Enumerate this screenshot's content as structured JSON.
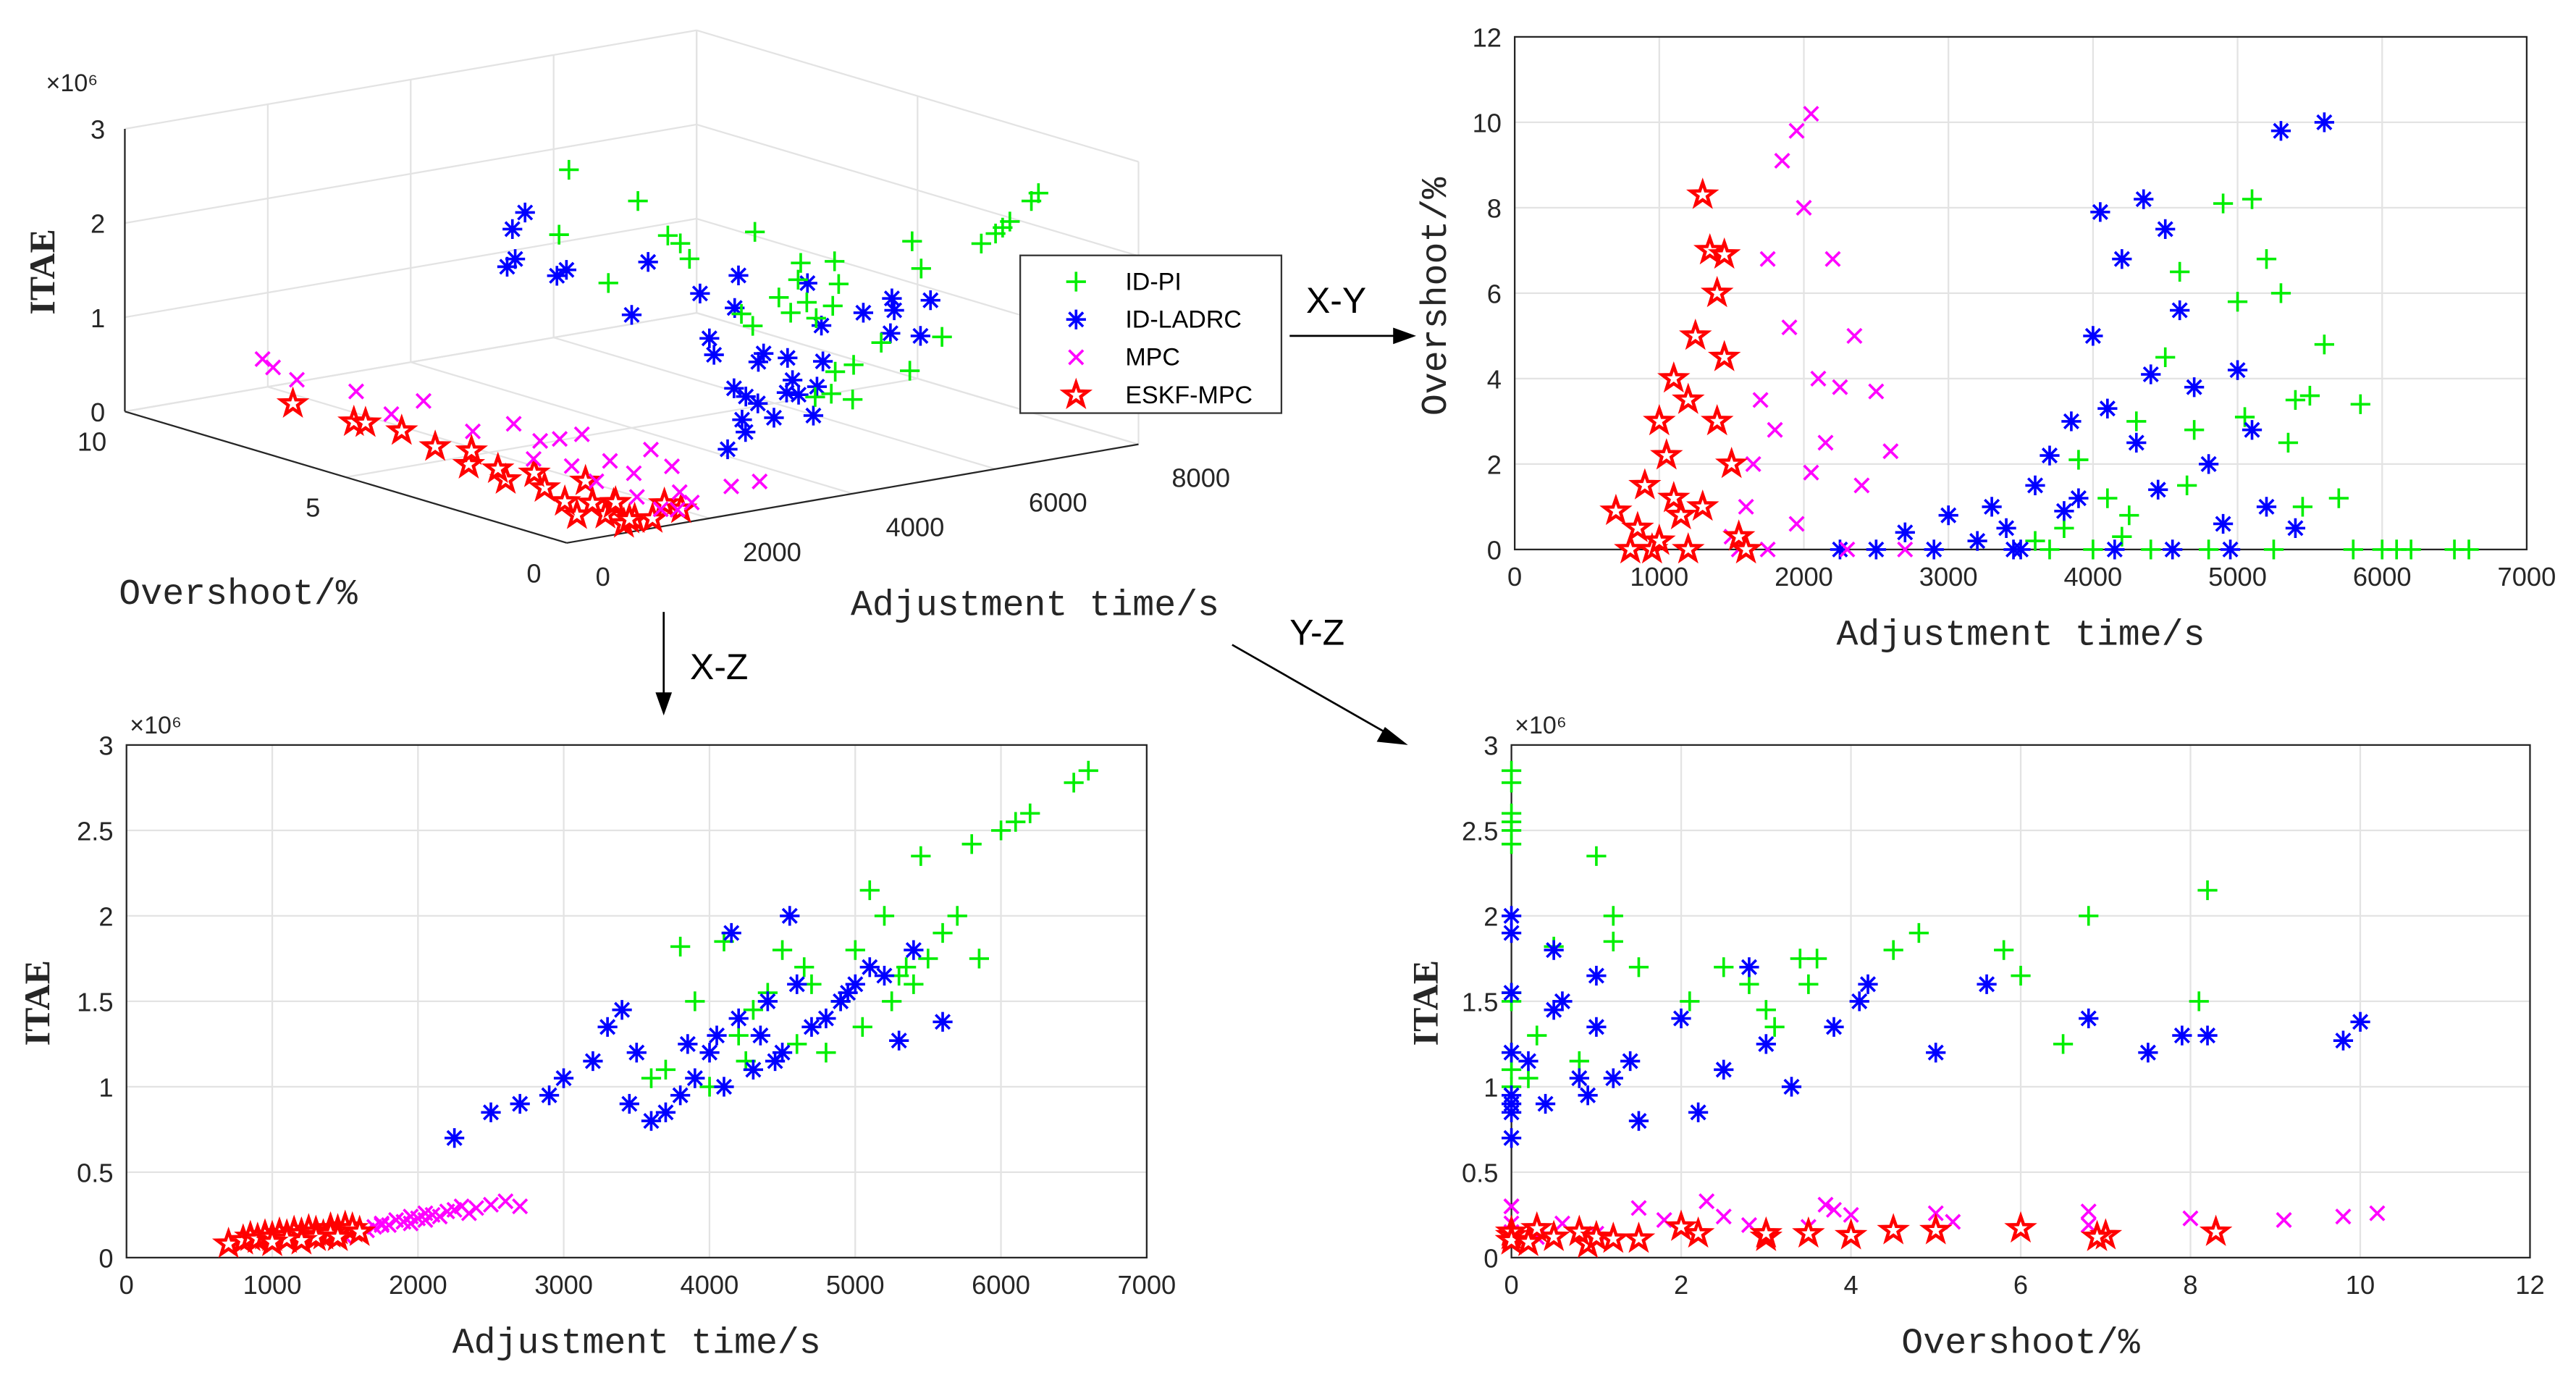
{
  "chart_data": {
    "type": "scatter",
    "colors": {
      "ID-PI": "#00ee00",
      "ID-LADRC": "#0000ff",
      "MPC": "#ff00ff",
      "ESKF-MPC": "#ff0000"
    },
    "point_format": [
      "adjustment_time_s",
      "overshoot_pct",
      "itae_x1e6"
    ],
    "series": [
      {
        "name": "ID-PI",
        "marker": "plus",
        "points": [
          [
            3700,
            0,
            1.1
          ],
          [
            3800,
            0.5,
            1.82
          ],
          [
            3900,
            2.1,
            1.5
          ],
          [
            4000,
            0,
            1.0
          ],
          [
            4100,
            1.2,
            1.85
          ],
          [
            4200,
            0.3,
            1.3
          ],
          [
            4300,
            3.0,
            1.45
          ],
          [
            4400,
            0,
            1.55
          ],
          [
            4500,
            4.5,
            1.8
          ],
          [
            4600,
            6.5,
            1.25
          ],
          [
            4700,
            2.8,
            1.6
          ],
          [
            4800,
            0,
            1.2
          ],
          [
            4900,
            8.1,
            1.5
          ],
          [
            5000,
            5.8,
            1.8
          ],
          [
            5050,
            3.1,
            1.35
          ],
          [
            5100,
            8.2,
            2.15
          ],
          [
            5200,
            6.8,
            2.0
          ],
          [
            5250,
            0,
            1.5
          ],
          [
            5300,
            6.0,
            1.65
          ],
          [
            5350,
            2.5,
            1.7
          ],
          [
            5400,
            3.5,
            1.6
          ],
          [
            5450,
            1.0,
            2.35
          ],
          [
            5500,
            3.6,
            1.75
          ],
          [
            5700,
            1.2,
            2.0
          ],
          [
            5800,
            0,
            2.42
          ],
          [
            5850,
            3.4,
            1.75
          ],
          [
            6000,
            0,
            2.5
          ],
          [
            6100,
            0,
            2.55
          ],
          [
            6200,
            0,
            2.6
          ],
          [
            6500,
            0,
            2.78
          ],
          [
            6600,
            0,
            2.85
          ],
          [
            4650,
            1.5,
            1.7
          ],
          [
            4250,
            0.8,
            1.15
          ],
          [
            3600,
            0.2,
            1.05
          ],
          [
            5600,
            4.8,
            1.9
          ]
        ]
      },
      {
        "name": "ID-LADRC",
        "marker": "asterisk",
        "points": [
          [
            2250,
            0,
            0.7
          ],
          [
            2500,
            0,
            0.85
          ],
          [
            2700,
            0.4,
            0.9
          ],
          [
            2900,
            0,
            0.95
          ],
          [
            3000,
            0.8,
            1.05
          ],
          [
            3200,
            0.2,
            1.15
          ],
          [
            3300,
            1.0,
            1.35
          ],
          [
            3400,
            0.5,
            1.45
          ],
          [
            3500,
            0,
            1.2
          ],
          [
            3600,
            1.5,
            0.8
          ],
          [
            3700,
            2.2,
            0.85
          ],
          [
            3800,
            0.9,
            0.95
          ],
          [
            3900,
            1.2,
            1.05
          ],
          [
            4000,
            5.0,
            1.2
          ],
          [
            4050,
            7.9,
            1.3
          ],
          [
            4100,
            3.3,
            1.0
          ],
          [
            4200,
            6.8,
            1.4
          ],
          [
            4300,
            2.5,
            1.1
          ],
          [
            4350,
            8.2,
            1.3
          ],
          [
            4400,
            4.1,
            1.5
          ],
          [
            4450,
            1.4,
            1.15
          ],
          [
            4500,
            7.5,
            1.2
          ],
          [
            4600,
            5.6,
            1.6
          ],
          [
            4700,
            3.8,
            1.35
          ],
          [
            4800,
            2.0,
            1.4
          ],
          [
            4900,
            0.6,
            1.5
          ],
          [
            5000,
            4.2,
            1.6
          ],
          [
            5100,
            2.8,
            1.7
          ],
          [
            5200,
            1.0,
            1.65
          ],
          [
            5300,
            9.8,
            1.27
          ],
          [
            5400,
            0.5,
            1.8
          ],
          [
            5600,
            10.0,
            1.38
          ],
          [
            4150,
            0,
            1.9
          ],
          [
            4550,
            0,
            2.0
          ],
          [
            3450,
            0,
            0.9
          ],
          [
            4950,
            0,
            1.55
          ],
          [
            3850,
            3.0,
            1.25
          ]
        ]
      },
      {
        "name": "MPC",
        "marker": "x",
        "points": [
          [
            1500,
            0.3,
            0.12
          ],
          [
            1550,
            0,
            0.15
          ],
          [
            1600,
            1.0,
            0.14
          ],
          [
            1650,
            2.0,
            0.16
          ],
          [
            1700,
            3.5,
            0.18
          ],
          [
            1750,
            0,
            0.2
          ],
          [
            1800,
            2.8,
            0.19
          ],
          [
            1850,
            9.1,
            0.22
          ],
          [
            1900,
            5.2,
            0.21
          ],
          [
            1950,
            9.8,
            0.24
          ],
          [
            2000,
            8.0,
            0.23
          ],
          [
            2050,
            10.2,
            0.26
          ],
          [
            2100,
            4.0,
            0.25
          ],
          [
            2150,
            2.5,
            0.24
          ],
          [
            2200,
            6.8,
            0.27
          ],
          [
            2250,
            3.8,
            0.28
          ],
          [
            2300,
            0,
            0.3
          ],
          [
            2400,
            1.5,
            0.29
          ],
          [
            2500,
            3.7,
            0.31
          ],
          [
            2600,
            2.3,
            0.33
          ],
          [
            2700,
            0,
            0.3
          ],
          [
            2350,
            5.0,
            0.26
          ],
          [
            1950,
            0.6,
            0.2
          ],
          [
            2050,
            1.8,
            0.22
          ],
          [
            1750,
            6.8,
            0.19
          ]
        ]
      },
      {
        "name": "ESKF-MPC",
        "marker": "star",
        "points": [
          [
            700,
            0.9,
            0.08
          ],
          [
            800,
            0,
            0.1
          ],
          [
            850,
            0.5,
            0.12
          ],
          [
            900,
            1.5,
            0.11
          ],
          [
            950,
            0,
            0.13
          ],
          [
            1000,
            3.0,
            0.12
          ],
          [
            1050,
            2.2,
            0.14
          ],
          [
            1100,
            4.0,
            0.13
          ],
          [
            1150,
            0.8,
            0.15
          ],
          [
            1200,
            3.5,
            0.14
          ],
          [
            1250,
            5.0,
            0.16
          ],
          [
            1300,
            8.3,
            0.15
          ],
          [
            1350,
            7.0,
            0.13
          ],
          [
            1400,
            6.0,
            0.17
          ],
          [
            1450,
            4.5,
            0.16
          ],
          [
            1500,
            2.0,
            0.18
          ],
          [
            1550,
            0.3,
            0.17
          ],
          [
            1600,
            0,
            0.15
          ],
          [
            1300,
            1.0,
            0.12
          ],
          [
            1200,
            0,
            0.1
          ],
          [
            1100,
            1.2,
            0.11
          ],
          [
            1400,
            3.0,
            0.14
          ],
          [
            1000,
            0.2,
            0.09
          ],
          [
            1450,
            6.9,
            0.12
          ]
        ]
      }
    ],
    "panels": [
      {
        "id": "3d",
        "type": "scatter3d",
        "xlabel": "Adjustment time/s",
        "ylabel": "Overshoot/%",
        "zlabel": "ITAE",
        "exponent": "×10⁶",
        "xticks": [
          0,
          2000,
          4000,
          6000,
          8000
        ],
        "yticks": [
          0,
          5,
          10
        ],
        "zticks": [
          0,
          1,
          2,
          3
        ],
        "xlim": [
          0,
          8000
        ],
        "ylim": [
          0,
          10
        ],
        "zlim": [
          0,
          3
        ],
        "legend": "right"
      },
      {
        "id": "xy",
        "type": "scatter",
        "xlabel": "Adjustment time/s",
        "ylabel": "Overshoot/%",
        "exponent": "",
        "xticks": [
          0,
          1000,
          2000,
          3000,
          4000,
          5000,
          6000,
          7000
        ],
        "yticks": [
          0,
          2,
          4,
          6,
          8,
          10,
          12
        ],
        "xlim": [
          0,
          7000
        ],
        "ylim": [
          0,
          12
        ],
        "grid": true
      },
      {
        "id": "xz",
        "type": "scatter",
        "xlabel": "Adjustment time/s",
        "ylabel": "ITAE",
        "exponent": "×10⁶",
        "xticks": [
          0,
          1000,
          2000,
          3000,
          4000,
          5000,
          6000,
          7000
        ],
        "yticks": [
          0,
          0.5,
          1,
          1.5,
          2,
          2.5,
          3
        ],
        "xlim": [
          0,
          7000
        ],
        "ylim": [
          0,
          3
        ],
        "grid": true
      },
      {
        "id": "yz",
        "type": "scatter",
        "xlabel": "Overshoot/%",
        "ylabel": "ITAE",
        "exponent": "×10⁶",
        "xticks": [
          0,
          2,
          4,
          6,
          8,
          10,
          12
        ],
        "yticks": [
          0,
          0.5,
          1,
          1.5,
          2,
          2.5,
          3
        ],
        "xlim": [
          0,
          12
        ],
        "ylim": [
          0,
          3
        ],
        "grid": true
      }
    ],
    "projections": {
      "xy": "X-Y",
      "xz": "X-Z",
      "yz": "Y-Z"
    }
  }
}
